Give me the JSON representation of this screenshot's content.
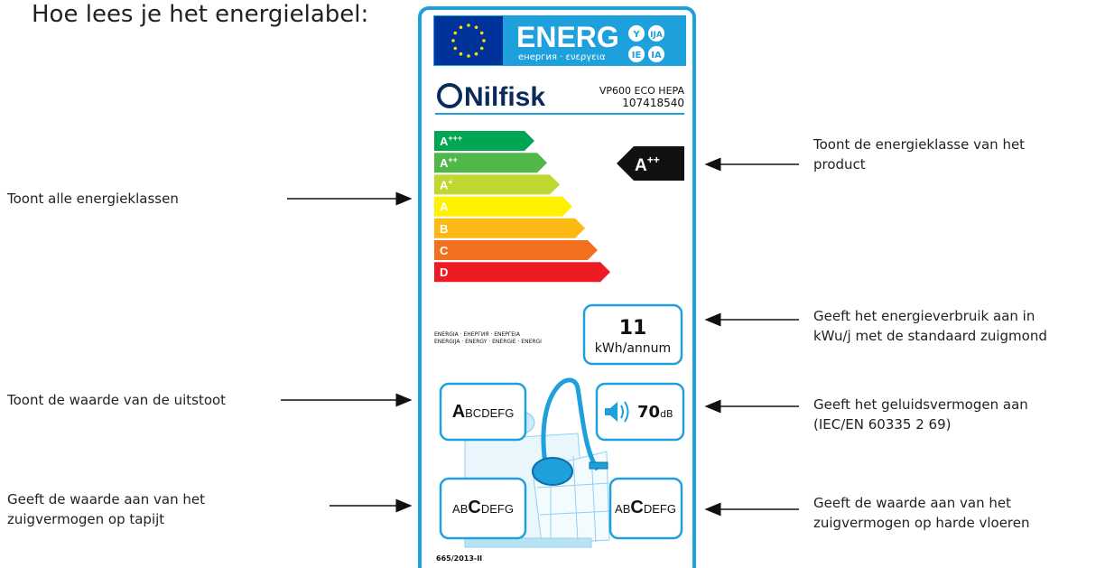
{
  "heading": "Hoe lees je het energielabel:",
  "label": {
    "header": {
      "word": "ENERG",
      "subtitle": "енергия · ενεργεια",
      "badges": [
        "Y",
        "IJA",
        "IE",
        "IA"
      ]
    },
    "brand": "Nilfisk",
    "model": "VP600 ECO HEPA",
    "code": "107418540",
    "classes": [
      {
        "letter": "A",
        "sup": "+++"
      },
      {
        "letter": "A",
        "sup": "++"
      },
      {
        "letter": "A",
        "sup": "+"
      },
      {
        "letter": "A"
      },
      {
        "letter": "B"
      },
      {
        "letter": "C"
      },
      {
        "letter": "D"
      }
    ],
    "rating": {
      "letter": "A",
      "sup": "++"
    },
    "languages": [
      "ENERGIA · ЕНЕРГИЯ · ΕΝΕΡΓΕΙΑ",
      "ENERGIJA · ENERGY · ENERGIE · ENERGI"
    ],
    "consumption": {
      "value": "11",
      "unit": "kWh/annum"
    },
    "dust": [
      {
        "text": "A",
        "bold": true
      },
      {
        "text": "BCDEFG"
      }
    ],
    "noise": {
      "value": "70",
      "unit": "dB"
    },
    "carpet": [
      {
        "text": "AB"
      },
      {
        "text": "C",
        "bold": true
      },
      {
        "text": "DEFG"
      }
    ],
    "hard_floor": [
      {
        "text": "AB"
      },
      {
        "text": "C",
        "bold": true
      },
      {
        "text": "DEFG"
      }
    ],
    "regulation": "665/2013-II"
  },
  "annotations": {
    "left": [
      [
        "Toont alle energieklassen"
      ],
      [
        "Toont de waarde van de uitstoot"
      ],
      [
        "Geeft de waarde aan van het",
        "zuigvermogen op tapijt"
      ]
    ],
    "right": [
      [
        "Toont de energieklasse van het",
        "product"
      ],
      [
        "Geeft het energieverbruik aan in",
        "kWu/j met de standaard zuigmond"
      ],
      [
        "Geeft het geluidsvermogen aan",
        "(IEC/EN 60335 2 69)"
      ],
      [
        "Geeft de waarde aan van het",
        "zuigvermogen op harde vloeren"
      ]
    ]
  }
}
